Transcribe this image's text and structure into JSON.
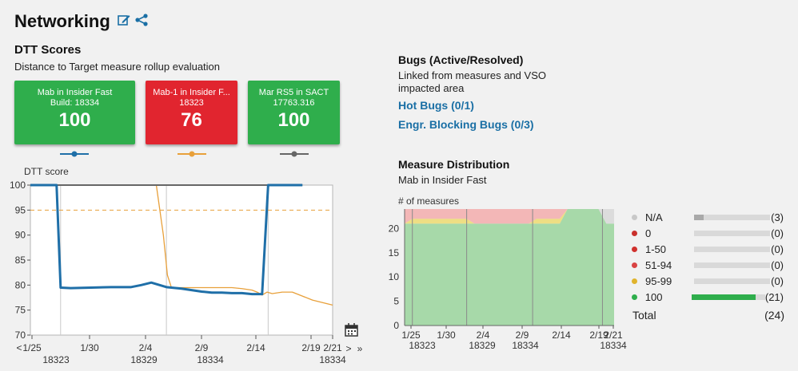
{
  "header": {
    "title": "Networking"
  },
  "dtt": {
    "title": "DTT Scores",
    "subtitle": "Distance to Target measure rollup evaluation",
    "tiles": [
      {
        "line1": "Mab in Insider Fast",
        "line2": "Build: 18334",
        "score": "100",
        "color": "#2fae4c",
        "legend_color": "#1f6fa8"
      },
      {
        "line1": "Mab-1 in Insider F...",
        "line2": "18323",
        "score": "76",
        "color": "#e1252f",
        "legend_color": "#e8a03a"
      },
      {
        "line1": "Mar RS5 in SACT",
        "line2": "17763.316",
        "score": "100",
        "color": "#2fae4c",
        "legend_color": "#666666"
      }
    ]
  },
  "chart_data": [
    {
      "type": "line",
      "title": "DTT score",
      "ylabel": "DTT score",
      "ylim": [
        70,
        100
      ],
      "yticks": [
        70,
        75,
        80,
        85,
        90,
        95,
        100
      ],
      "target_line": 95,
      "x_tick_labels": [
        "1/25",
        "1/30",
        "2/4",
        "2/9",
        "2/14",
        "2/19",
        "2/21"
      ],
      "build_labels": [
        "18323",
        "18329",
        "18334",
        "18334"
      ],
      "nav": {
        "prev": "<",
        "next": ">",
        "last": "»"
      },
      "series": [
        {
          "name": "Mab in Insider Fast",
          "color": "#1f6fa8",
          "x": [
            0,
            2.6,
            3,
            4,
            6,
            8,
            10,
            11,
            12,
            13.5,
            15,
            16,
            17,
            18,
            19,
            20,
            21,
            22,
            23,
            23.6,
            24,
            27
          ],
          "y": [
            100,
            100,
            79.5,
            79.4,
            79.5,
            79.6,
            79.6,
            80,
            80.5,
            79.6,
            79.3,
            79,
            78.7,
            78.5,
            78.5,
            78.4,
            78.4,
            78.2,
            78.2,
            100,
            100,
            100
          ]
        },
        {
          "name": "Mab-1 in Insider Fast",
          "color": "#e8a03a",
          "x": [
            12.5,
            13.2,
            13.6,
            14,
            16,
            18,
            20,
            21,
            22,
            22.5,
            23,
            23.5,
            24,
            25,
            26,
            27,
            28,
            29,
            30
          ],
          "y": [
            100,
            90,
            82,
            79.5,
            79.5,
            79.5,
            79.5,
            79.3,
            79,
            78.6,
            78,
            78.6,
            78.3,
            78.6,
            78.6,
            77.8,
            77,
            76.5,
            76
          ]
        },
        {
          "name": "Mar RS5 in SACT",
          "color": "#666666",
          "x": [
            0,
            27
          ],
          "y": [
            100,
            100
          ]
        }
      ]
    },
    {
      "type": "area",
      "title": "Measure Distribution",
      "subtitle": "Mab in Insider Fast",
      "ylabel": "# of measures",
      "ylim": [
        0,
        24
      ],
      "yticks": [
        0,
        5,
        10,
        15,
        20
      ],
      "x_tick_labels": [
        "1/25",
        "1/30",
        "2/4",
        "2/9",
        "2/14",
        "2/19",
        "2/21"
      ],
      "build_labels": [
        "18323",
        "18329",
        "18334",
        "18334"
      ],
      "series": [
        {
          "name": "100",
          "color": "#a7d9a9",
          "x": [
            0,
            1,
            8,
            9,
            16,
            17,
            20,
            21,
            22,
            23,
            25,
            26,
            27
          ],
          "y": [
            21,
            21,
            21,
            21,
            21,
            21,
            21,
            24,
            24,
            24,
            24,
            21,
            21
          ]
        },
        {
          "name": "95-99",
          "color": "#eede84",
          "x": [
            0,
            1,
            8,
            9,
            16,
            17,
            20,
            21,
            27
          ],
          "y": [
            0,
            1,
            1,
            0,
            0,
            1,
            1,
            0,
            0
          ]
        },
        {
          "name": "51-94",
          "color": "#f3b7b7",
          "x": [
            0,
            1,
            8,
            9,
            16,
            17,
            20,
            21,
            27
          ],
          "y": [
            3,
            2,
            2,
            3,
            3,
            2,
            2,
            0,
            0
          ]
        },
        {
          "name": "N/A",
          "color": "#dcdcdc",
          "x": [
            0,
            25,
            26,
            27
          ],
          "y": [
            0,
            0,
            3,
            3
          ]
        }
      ]
    }
  ],
  "bugs": {
    "title": "Bugs (Active/Resolved)",
    "subtitle_line1": "Linked from measures and VSO",
    "subtitle_line2": "impacted area",
    "hot_bugs": "Hot Bugs (0/1)",
    "blocking_bugs": "Engr. Blocking Bugs (0/3)"
  },
  "measure_distribution": {
    "title": "Measure Distribution",
    "subtitle": "Mab in Insider Fast",
    "ylabel": "# of measures",
    "legend": [
      {
        "label": "N/A",
        "count": "(3)",
        "value": 3,
        "color": "#c8c8c8",
        "bar_color": "#a9a9a9"
      },
      {
        "label": "0",
        "count": "(0)",
        "value": 0,
        "color": "#c9302c",
        "bar_color": "#c9302c"
      },
      {
        "label": "1-50",
        "count": "(0)",
        "value": 0,
        "color": "#d0312d",
        "bar_color": "#d0312d"
      },
      {
        "label": "51-94",
        "count": "(0)",
        "value": 0,
        "color": "#d94343",
        "bar_color": "#d94343"
      },
      {
        "label": "95-99",
        "count": "(0)",
        "value": 0,
        "color": "#e0b32c",
        "bar_color": "#e0b32c"
      },
      {
        "label": "100",
        "count": "(21)",
        "value": 21,
        "color": "#2fae4c",
        "bar_color": "#2fae4c"
      }
    ],
    "total_label": "Total",
    "total_count": "(24)"
  }
}
